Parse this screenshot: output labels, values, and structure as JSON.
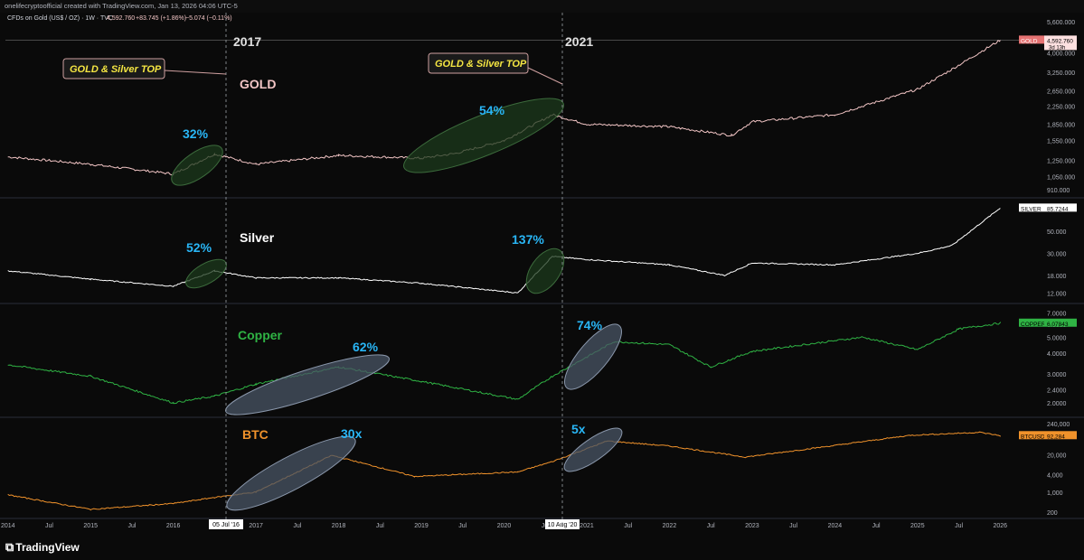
{
  "header": {
    "credit": "onelifecryptoofficial created with TradingView.com, Jan 13, 2026 04:06 UTC-5",
    "symbol": "CFDs on Gold (US$ / OZ) · 1W · TVC",
    "price": "4,592.760",
    "change": "+83.745 (+1.86%)",
    "change2": "−5.074 (−0.11%)"
  },
  "footer": {
    "brand": "TradingView"
  },
  "colors": {
    "gold": "#f2c5c5",
    "silver": "#ffffff",
    "copper": "#2fb344",
    "btc": "#f0922b",
    "annot": "#29b6f6",
    "callout_text": "#f5e642"
  },
  "chart_data": [
    {
      "type": "line",
      "name": "GOLD",
      "label": "GOLD",
      "x": [
        "2014-01",
        "2015-01",
        "2016-01",
        "2016-07",
        "2017-01",
        "2018-01",
        "2019-01",
        "2019-06",
        "2020-01",
        "2020-08",
        "2021-01",
        "2022-01",
        "2022-10",
        "2023-01",
        "2024-01",
        "2025-01",
        "2025-06",
        "2026-01"
      ],
      "values": [
        1300,
        1200,
        1080,
        1340,
        1200,
        1320,
        1280,
        1350,
        1550,
        2050,
        1850,
        1800,
        1640,
        1900,
        2050,
        2700,
        3350,
        4592.76
      ],
      "yticks": [
        "5,600.000",
        "4,600.000",
        "4,000.000",
        "3,250.000",
        "2,650.000",
        "2,250.000",
        "1,850.000",
        "1,550.000",
        "1,250.000",
        "1,050.000",
        "910.000"
      ],
      "last_label": "GOLD",
      "last_value": "4,592.760",
      "last_sub": "3d 13h",
      "annotations": [
        {
          "text": "32%",
          "x": "2016-01"
        },
        {
          "text": "54%",
          "x": "2019-10"
        },
        {
          "text": "GOLD & Silver TOP",
          "x": "2016-07"
        },
        {
          "text": "GOLD & Silver TOP",
          "x": "2020-08"
        }
      ]
    },
    {
      "type": "line",
      "name": "Silver",
      "label": "Silver",
      "x": [
        "2014-01",
        "2015-01",
        "2016-01",
        "2016-07",
        "2017-01",
        "2018-01",
        "2019-01",
        "2020-03",
        "2020-08",
        "2021-01",
        "2022-01",
        "2022-09",
        "2023-01",
        "2024-01",
        "2025-01",
        "2025-06",
        "2026-01"
      ],
      "values": [
        20,
        16.5,
        14,
        20,
        17,
        17,
        15,
        12,
        28,
        26,
        23,
        18,
        24,
        23,
        30,
        36,
        85.72
      ],
      "yticks": [
        "50.000",
        "30.000",
        "18.000",
        "12.000"
      ],
      "last_label": "SILVER",
      "last_value": "85.7244",
      "annotations": [
        {
          "text": "52%"
        },
        {
          "text": "137%"
        }
      ]
    },
    {
      "type": "line",
      "name": "Copper",
      "label": "Copper",
      "x": [
        "2014-01",
        "2015-01",
        "2016-01",
        "2016-07",
        "2017-01",
        "2018-01",
        "2019-01",
        "2020-03",
        "2020-08",
        "2021-05",
        "2022-01",
        "2022-07",
        "2023-01",
        "2024-05",
        "2025-01",
        "2025-07",
        "2026-01"
      ],
      "values": [
        3.4,
        2.9,
        2.0,
        2.2,
        2.6,
        3.3,
        2.7,
        2.1,
        2.9,
        4.7,
        4.5,
        3.3,
        4.1,
        5.0,
        4.2,
        5.6,
        6.07843
      ],
      "yticks": [
        "7.0000",
        "6.0000",
        "5.0000",
        "4.0000",
        "3.0000",
        "2.4000",
        "2.0000"
      ],
      "last_label": "COPPER",
      "last_value": "6.07843",
      "annotations": [
        {
          "text": "62%"
        },
        {
          "text": "74%"
        }
      ]
    },
    {
      "type": "line",
      "name": "BTC",
      "label": "BTC",
      "x": [
        "2014-01",
        "2015-01",
        "2016-01",
        "2016-07",
        "2017-01",
        "2017-12",
        "2018-12",
        "2020-03",
        "2020-08",
        "2021-04",
        "2022-01",
        "2022-12",
        "2024-01",
        "2024-12",
        "2025-10",
        "2026-01"
      ],
      "values": [
        800,
        250,
        400,
        650,
        1000,
        19000,
        3500,
        5000,
        11500,
        60000,
        40000,
        16500,
        42000,
        95000,
        120000,
        92284
      ],
      "yticks": [
        "240,000",
        "100,000",
        "20,000",
        "4,000",
        "1,000",
        "200"
      ],
      "last_label": "BTCUSD",
      "last_value": "92,284",
      "annotations": [
        {
          "text": "30x"
        },
        {
          "text": "5x"
        }
      ]
    }
  ],
  "x_axis": {
    "ticks": [
      "2014",
      "Jul",
      "2015",
      "Jul",
      "2016",
      "Jul",
      "2017",
      "Jul",
      "2018",
      "Jul",
      "2019",
      "Jul",
      "2020",
      "Jul",
      "2021",
      "Jul",
      "2022",
      "Jul",
      "2023",
      "Jul",
      "2024",
      "Jul",
      "2025",
      "Jul",
      "2026"
    ],
    "highlight_1": "05 Jul '16",
    "highlight_2": "10 Aug '20"
  },
  "markers": {
    "year1": "2017",
    "year2": "2021"
  }
}
